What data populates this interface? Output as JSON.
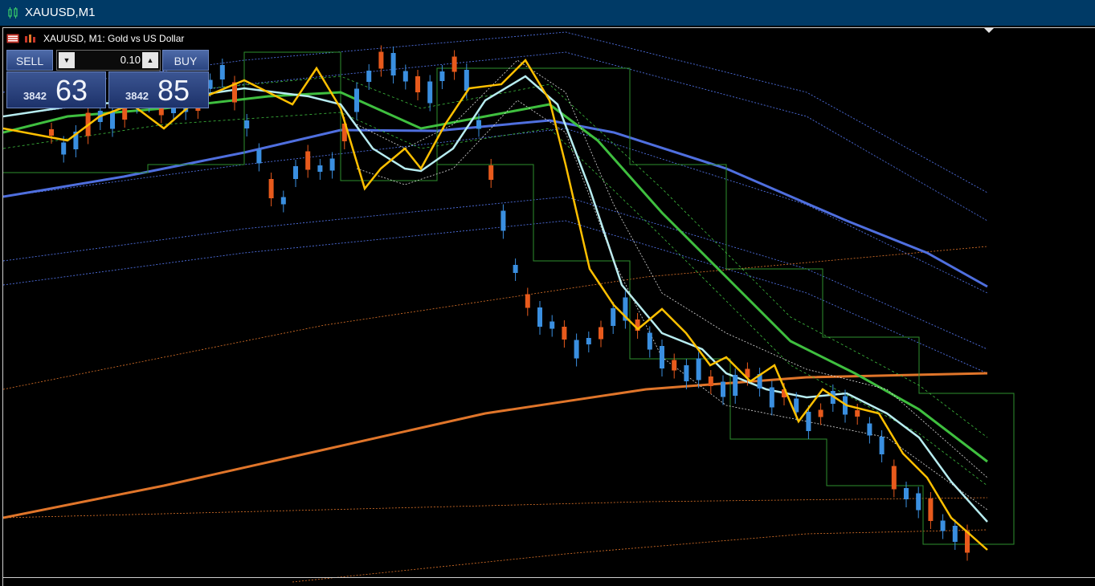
{
  "window": {
    "title": "XAUUSD,M1"
  },
  "chart": {
    "symbol_text": "XAUUSD, M1:  Gold vs US Dollar",
    "colors": {
      "bull_candle": "#3a8fe0",
      "bear_candle": "#e85a1c",
      "fast_ma": "#ffc000",
      "mid_ma": "#b7ecf0",
      "slow_ma": "#3fbf3f",
      "trend_ma": "#4f6fdf",
      "long_ma": "#e0752a",
      "channel_green": "#2e8f2e"
    }
  },
  "trade_panel": {
    "sell_label": "SELL",
    "buy_label": "BUY",
    "lot_value": "0.10",
    "sell_price_prefix": "3842",
    "sell_price_main": "63",
    "buy_price_prefix": "3842",
    "buy_price_main": "85",
    "lot_down_icon": "chevron-down",
    "lot_up_icon": "chevron-up"
  }
}
